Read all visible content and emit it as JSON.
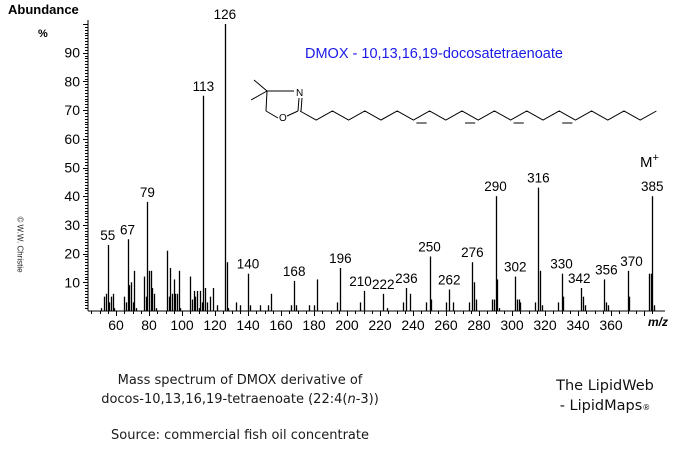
{
  "chart_data": {
    "type": "bar",
    "title": "DMOX  -  10,13,16,19-docosatetraenoate",
    "title_color": "#1a1ae6",
    "xlabel": "m/z",
    "ylabel": "Abundance",
    "ylabel_unit": "%",
    "xlim": [
      40,
      390
    ],
    "ylim": [
      0,
      100
    ],
    "x_ticks": [
      60,
      80,
      100,
      120,
      140,
      160,
      180,
      200,
      220,
      240,
      260,
      280,
      300,
      320,
      340,
      360
    ],
    "y_ticks": [
      10,
      20,
      30,
      40,
      50,
      60,
      70,
      80,
      90
    ],
    "grid": false,
    "molecular_ion_label": "M+",
    "labeled_peaks": [
      {
        "mz": 55,
        "abundance": 23
      },
      {
        "mz": 67,
        "abundance": 25
      },
      {
        "mz": 79,
        "abundance": 38
      },
      {
        "mz": 113,
        "abundance": 75
      },
      {
        "mz": 126,
        "abundance": 100
      },
      {
        "mz": 140,
        "abundance": 13
      },
      {
        "mz": 168,
        "abundance": 10.5
      },
      {
        "mz": 196,
        "abundance": 15
      },
      {
        "mz": 210,
        "abundance": 7
      },
      {
        "mz": 222,
        "abundance": 6
      },
      {
        "mz": 236,
        "abundance": 8
      },
      {
        "mz": 250,
        "abundance": 19
      },
      {
        "mz": 262,
        "abundance": 7.5
      },
      {
        "mz": 276,
        "abundance": 17
      },
      {
        "mz": 290,
        "abundance": 40
      },
      {
        "mz": 302,
        "abundance": 12
      },
      {
        "mz": 316,
        "abundance": 43
      },
      {
        "mz": 330,
        "abundance": 13
      },
      {
        "mz": 342,
        "abundance": 8
      },
      {
        "mz": 356,
        "abundance": 11
      },
      {
        "mz": 370,
        "abundance": 14
      },
      {
        "mz": 385,
        "abundance": 40
      }
    ],
    "minor_peaks": [
      {
        "mz": 51,
        "abundance": 1
      },
      {
        "mz": 53,
        "abundance": 5
      },
      {
        "mz": 54,
        "abundance": 6
      },
      {
        "mz": 56,
        "abundance": 3
      },
      {
        "mz": 57,
        "abundance": 5
      },
      {
        "mz": 58,
        "abundance": 6
      },
      {
        "mz": 59,
        "abundance": 1
      },
      {
        "mz": 65,
        "abundance": 5
      },
      {
        "mz": 66,
        "abundance": 3
      },
      {
        "mz": 68,
        "abundance": 9
      },
      {
        "mz": 69,
        "abundance": 10
      },
      {
        "mz": 70,
        "abundance": 3
      },
      {
        "mz": 71,
        "abundance": 14
      },
      {
        "mz": 72,
        "abundance": 1
      },
      {
        "mz": 77,
        "abundance": 12
      },
      {
        "mz": 78,
        "abundance": 5
      },
      {
        "mz": 80,
        "abundance": 14
      },
      {
        "mz": 81,
        "abundance": 14
      },
      {
        "mz": 82,
        "abundance": 8
      },
      {
        "mz": 83,
        "abundance": 6
      },
      {
        "mz": 84,
        "abundance": 1
      },
      {
        "mz": 91,
        "abundance": 21
      },
      {
        "mz": 92,
        "abundance": 5
      },
      {
        "mz": 93,
        "abundance": 15
      },
      {
        "mz": 94,
        "abundance": 6
      },
      {
        "mz": 95,
        "abundance": 11
      },
      {
        "mz": 96,
        "abundance": 6
      },
      {
        "mz": 97,
        "abundance": 6
      },
      {
        "mz": 98,
        "abundance": 14
      },
      {
        "mz": 99,
        "abundance": 1
      },
      {
        "mz": 105,
        "abundance": 12
      },
      {
        "mz": 106,
        "abundance": 4
      },
      {
        "mz": 107,
        "abundance": 7
      },
      {
        "mz": 108,
        "abundance": 5
      },
      {
        "mz": 109,
        "abundance": 7
      },
      {
        "mz": 110,
        "abundance": 1
      },
      {
        "mz": 111,
        "abundance": 7
      },
      {
        "mz": 112,
        "abundance": 3
      },
      {
        "mz": 114,
        "abundance": 8
      },
      {
        "mz": 115,
        "abundance": 3
      },
      {
        "mz": 117,
        "abundance": 5
      },
      {
        "mz": 119,
        "abundance": 8
      },
      {
        "mz": 121,
        "abundance": 2
      },
      {
        "mz": 127,
        "abundance": 17
      },
      {
        "mz": 128,
        "abundance": 1
      },
      {
        "mz": 133,
        "abundance": 3
      },
      {
        "mz": 135,
        "abundance": 2
      },
      {
        "mz": 141,
        "abundance": 2
      },
      {
        "mz": 147,
        "abundance": 2
      },
      {
        "mz": 152,
        "abundance": 2
      },
      {
        "mz": 154,
        "abundance": 6
      },
      {
        "mz": 166,
        "abundance": 2
      },
      {
        "mz": 169,
        "abundance": 2
      },
      {
        "mz": 177,
        "abundance": 2
      },
      {
        "mz": 180,
        "abundance": 2
      },
      {
        "mz": 182,
        "abundance": 11
      },
      {
        "mz": 194,
        "abundance": 3
      },
      {
        "mz": 208,
        "abundance": 3
      },
      {
        "mz": 224,
        "abundance": 1
      },
      {
        "mz": 234,
        "abundance": 3
      },
      {
        "mz": 238,
        "abundance": 6
      },
      {
        "mz": 248,
        "abundance": 3
      },
      {
        "mz": 251,
        "abundance": 4
      },
      {
        "mz": 260,
        "abundance": 3
      },
      {
        "mz": 264,
        "abundance": 3
      },
      {
        "mz": 274,
        "abundance": 3
      },
      {
        "mz": 277,
        "abundance": 10
      },
      {
        "mz": 278,
        "abundance": 4
      },
      {
        "mz": 288,
        "abundance": 4
      },
      {
        "mz": 289,
        "abundance": 4
      },
      {
        "mz": 291,
        "abundance": 11
      },
      {
        "mz": 292,
        "abundance": 1
      },
      {
        "mz": 303,
        "abundance": 4
      },
      {
        "mz": 304,
        "abundance": 4
      },
      {
        "mz": 305,
        "abundance": 3
      },
      {
        "mz": 314,
        "abundance": 3
      },
      {
        "mz": 317,
        "abundance": 14
      },
      {
        "mz": 318,
        "abundance": 2
      },
      {
        "mz": 328,
        "abundance": 3
      },
      {
        "mz": 331,
        "abundance": 5
      },
      {
        "mz": 343,
        "abundance": 5
      },
      {
        "mz": 344,
        "abundance": 2
      },
      {
        "mz": 357,
        "abundance": 3
      },
      {
        "mz": 358,
        "abundance": 2
      },
      {
        "mz": 371,
        "abundance": 5
      },
      {
        "mz": 383,
        "abundance": 13
      },
      {
        "mz": 384,
        "abundance": 13
      },
      {
        "mz": 386,
        "abundance": 2
      }
    ]
  },
  "structure": {
    "atom_n": "N",
    "atom_o": "O"
  },
  "caption": {
    "line1": "Mass spectrum of DMOX derivative of",
    "line2_prefix": "docos-10,13,16,19-tetraenoate  (22:4(",
    "line2_italic": "n",
    "line2_suffix": "-3))",
    "source": "Source: commercial fish oil concentrate"
  },
  "branding": {
    "line1": "The LipidWeb",
    "line2": "- LipidMaps",
    "registered": "®"
  },
  "copyright": "© W.W. Christie"
}
